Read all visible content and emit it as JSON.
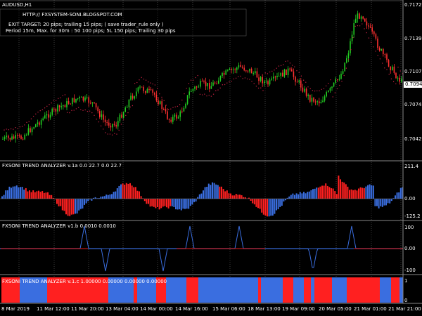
{
  "chart": {
    "symbol": "AUDUSD,H1",
    "url": "HTTP:// FXSYSTEM-SONI.BLOGSPOT.COM",
    "info_line1": "EXIT TARGET: 20 pips; trailing 15 pips; ( save trader_rule only )",
    "info_line2": "Period 15m, Max. for 30m : 50 100 pips; 5L 150 pips; Trailing 30 pips",
    "price_labels": [
      "0.71720",
      "0.71395",
      "0.71070",
      "0.70745",
      "0.70420"
    ],
    "current_price": "0.70940",
    "colors": {
      "bull": "#22cc22",
      "bear": "#ff3030",
      "up_hist": "#3a6ee0",
      "down_hist": "#ff2020",
      "dots": "#c02040"
    }
  },
  "panel1": {
    "title": "FXSONI TREND ANALYZER v.1a 0.0 22.7 0.0 22.7",
    "labels": [
      "211.4",
      "0.00",
      "-125.2"
    ]
  },
  "panel2": {
    "title": "FXSONI TREND ANALYZER v1.b 0.0010 0.0010",
    "labels": [
      "100",
      "0.00",
      "-100"
    ]
  },
  "panel3": {
    "title": "FXSONI TREND ANALYZER v.1.c 1.00000 0.00000 0.00000 0.00000",
    "labels": [
      "1",
      "0"
    ]
  },
  "time_labels": [
    "8 Mar 2019",
    "11 Mar 12:00",
    "11 Mar 20:00",
    "13 Mar 04:00",
    "14 Mar 00:00",
    "14 Mar 16:00",
    "15 Mar 06:00",
    "18 Mar 13:00",
    "19 Mar 09:00",
    "20 Mar 05:00",
    "21 Mar 01:00",
    "21 Mar 21:00"
  ]
}
